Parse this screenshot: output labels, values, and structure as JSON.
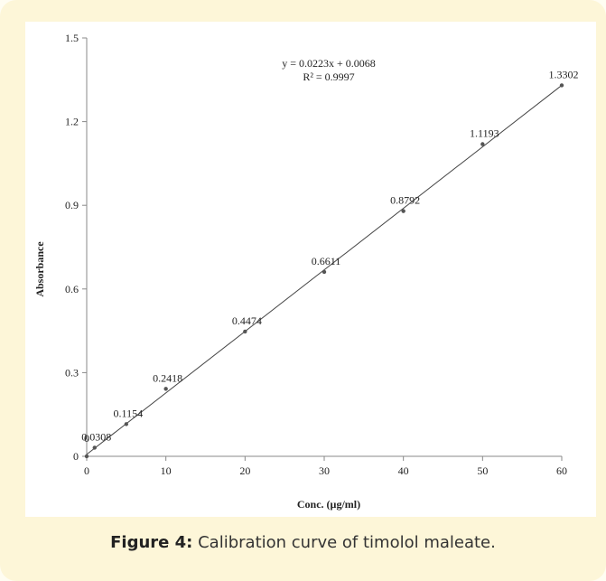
{
  "chart_data": {
    "type": "scatter",
    "annotations": [
      "y = 0.0223x + 0.0068",
      "R² = 0.9997"
    ],
    "xlabel": "Conc. (µg/ml)",
    "ylabel": "Absorbance",
    "x": [
      0,
      1,
      5,
      10,
      20,
      30,
      40,
      50,
      60
    ],
    "series": [
      {
        "color": "#555555",
        "values": [
          0,
          0.0308,
          0.1154,
          0.2418,
          0.4474,
          0.6611,
          0.8792,
          1.1193,
          1.3302
        ]
      }
    ],
    "xlim": [
      0,
      60
    ],
    "xticks": [
      0,
      10,
      20,
      30,
      40,
      50,
      60
    ],
    "ylim": [
      0,
      1.5
    ],
    "yticks": [
      0,
      0.3,
      0.6,
      0.9,
      1.2,
      1.5
    ],
    "trendline": true
  },
  "caption": {
    "label": "Figure 4:",
    "text": "Calibration curve of timolol maleate."
  }
}
